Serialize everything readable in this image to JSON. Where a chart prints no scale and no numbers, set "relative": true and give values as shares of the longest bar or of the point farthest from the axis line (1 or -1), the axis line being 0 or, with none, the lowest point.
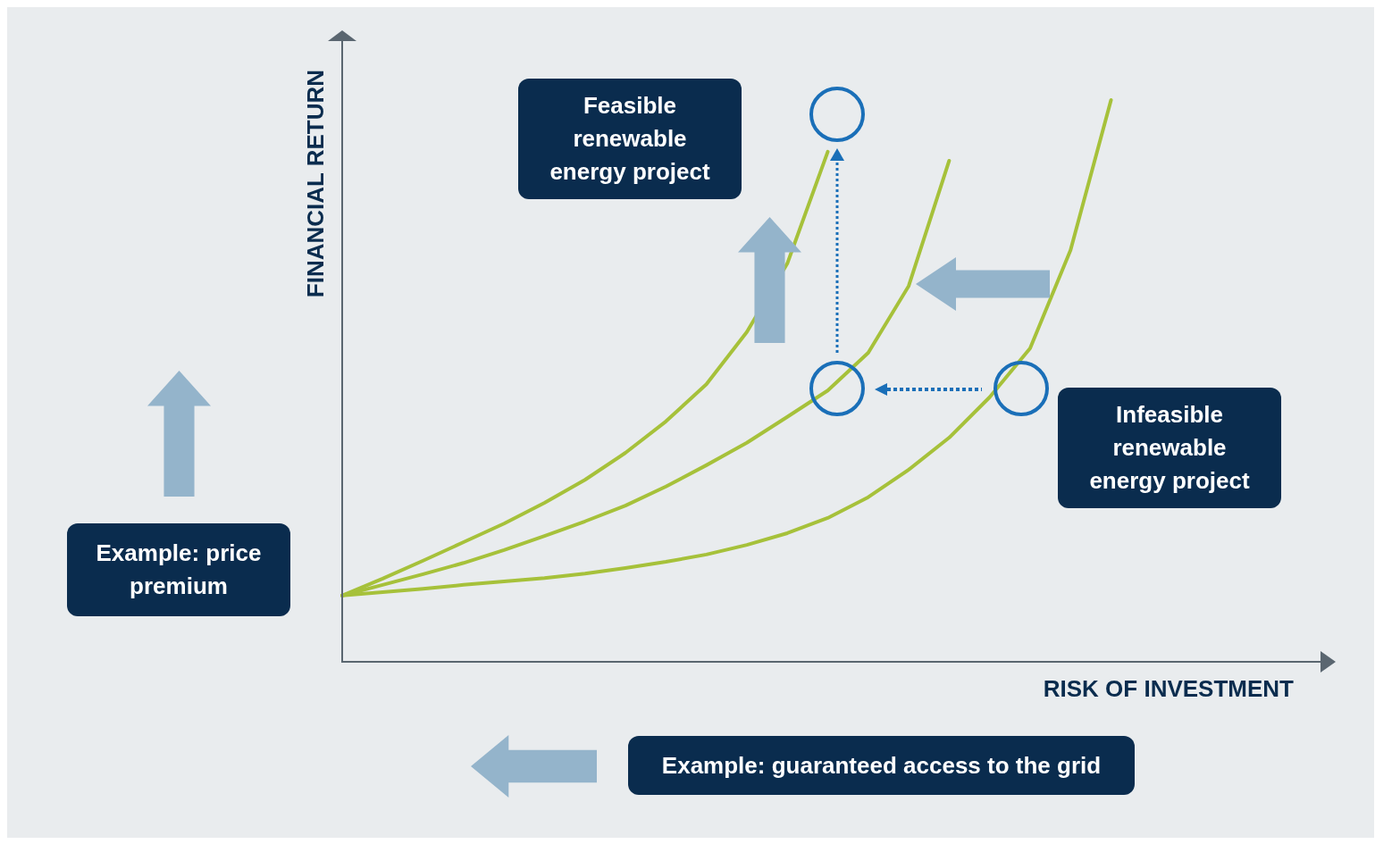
{
  "chart_data": {
    "type": "line",
    "relative": true,
    "xlabel": "RISK OF INVESTMENT",
    "ylabel": "FINANCIAL RETURN",
    "marker": "none",
    "categories": [
      null,
      null,
      null,
      null,
      null,
      null,
      null,
      null,
      null,
      null,
      null,
      null,
      null,
      null,
      null,
      null,
      null,
      null,
      null,
      null,
      null,
      null,
      null,
      null,
      null
    ],
    "series": [
      {
        "color": "#a6c13a",
        "values": [
          0.118,
          0.148,
          0.18,
          0.213,
          0.246,
          0.283,
          0.324,
          0.372,
          0.428,
          0.494,
          0.587,
          0.709,
          0.908,
          null,
          null,
          null,
          null,
          null,
          null,
          null,
          null,
          null,
          null,
          null,
          null
        ]
      },
      {
        "color": "#a6c13a",
        "values": [
          0.118,
          0.137,
          0.156,
          0.176,
          0.199,
          0.224,
          0.25,
          0.278,
          0.312,
          0.35,
          0.39,
          0.436,
          0.483,
          0.55,
          0.669,
          0.892,
          null,
          null,
          null,
          null,
          null,
          null,
          null,
          null,
          null
        ]
      },
      {
        "color": "#a6c13a",
        "values": [
          0.118,
          0.124,
          0.13,
          0.137,
          0.143,
          0.149,
          0.157,
          0.167,
          0.178,
          0.191,
          0.208,
          0.229,
          0.256,
          0.293,
          0.342,
          0.399,
          0.471,
          0.558,
          0.733,
          1,
          null,
          null,
          null,
          null,
          null
        ]
      }
    ],
    "annotations": [
      "Feasible renewable energy project",
      "Infeasible renewable energy project",
      "Example: price premium",
      "Example: guaranteed access to the grid"
    ]
  }
}
